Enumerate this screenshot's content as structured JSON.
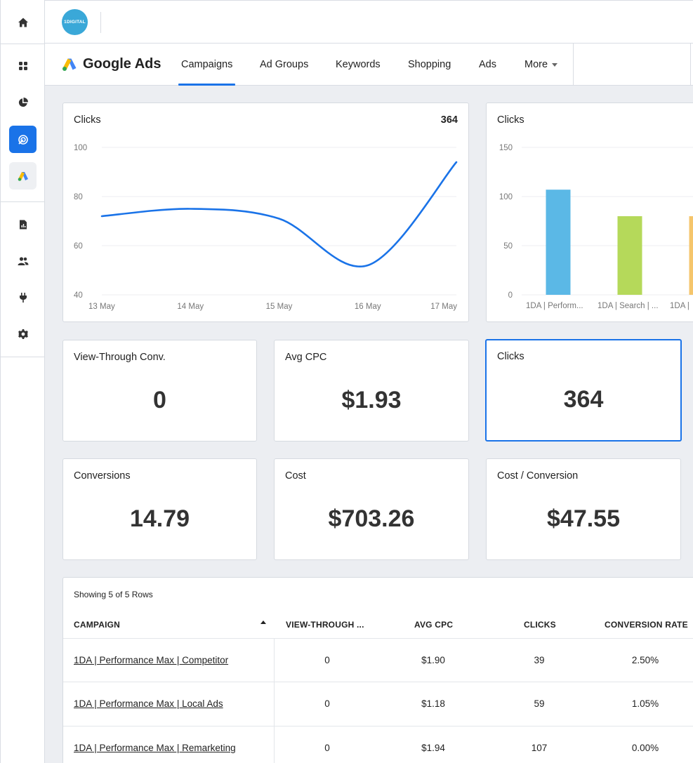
{
  "brand": {
    "logo_text": "1DIGITAL"
  },
  "sidebar": {
    "items": [
      {
        "name": "home-icon"
      },
      {
        "name": "dashboard-grid-icon"
      },
      {
        "name": "pie-chart-icon"
      },
      {
        "name": "target-icon",
        "active": true
      },
      {
        "name": "google-ads-icon"
      },
      {
        "name": "report-icon"
      },
      {
        "name": "users-icon"
      },
      {
        "name": "plug-icon"
      },
      {
        "name": "gear-icon"
      }
    ]
  },
  "nav": {
    "title": "Google Ads",
    "tabs": [
      {
        "label": "Campaigns",
        "active": true
      },
      {
        "label": "Ad Groups"
      },
      {
        "label": "Keywords"
      },
      {
        "label": "Shopping"
      },
      {
        "label": "Ads"
      },
      {
        "label": "More"
      }
    ]
  },
  "line_card": {
    "title": "Clicks",
    "total": "364"
  },
  "bar_card": {
    "title": "Clicks"
  },
  "kpis": [
    {
      "label": "View-Through Conv.",
      "value": "0"
    },
    {
      "label": "Avg CPC",
      "value": "$1.93"
    },
    {
      "label": "Clicks",
      "value": "364",
      "selected": true
    },
    {
      "label": "Conversions",
      "value": "14.79"
    },
    {
      "label": "Cost",
      "value": "$703.26"
    },
    {
      "label": "Cost / Conversion",
      "value": "$47.55"
    }
  ],
  "table": {
    "rows_info": "Showing 5 of 5 Rows",
    "headers": [
      "CAMPAIGN",
      "VIEW-THROUGH ...",
      "AVG CPC",
      "CLICKS",
      "CONVERSION RATE"
    ],
    "rows": [
      [
        "1DA | Performance Max | Competitor",
        "0",
        "$1.90",
        "39",
        "2.50%"
      ],
      [
        "1DA | Performance Max | Local Ads",
        "0",
        "$1.18",
        "59",
        "1.05%"
      ],
      [
        "1DA | Performance Max | Remarketing",
        "0",
        "$1.94",
        "107",
        "0.00%"
      ]
    ]
  },
  "chart_data": [
    {
      "type": "line",
      "title": "Clicks",
      "x": [
        "13 May",
        "14 May",
        "15 May",
        "16 May",
        "17 May"
      ],
      "series": [
        {
          "values": [
            72,
            75,
            71,
            52,
            94
          ]
        }
      ],
      "ylim": [
        40,
        100
      ],
      "yticks": [
        40,
        60,
        80,
        100
      ],
      "grid": true,
      "color": "#1a73e8"
    },
    {
      "type": "bar",
      "title": "Clicks",
      "categories": [
        "1DA | Perform...",
        "1DA | Search | ...",
        "1DA |"
      ],
      "values": [
        107,
        80,
        80
      ],
      "colors": [
        "#5bb8e6",
        "#b5d95a",
        "#f5c56b"
      ],
      "ylim": [
        0,
        150
      ],
      "yticks": [
        0,
        50,
        100,
        150
      ],
      "grid": true
    }
  ]
}
